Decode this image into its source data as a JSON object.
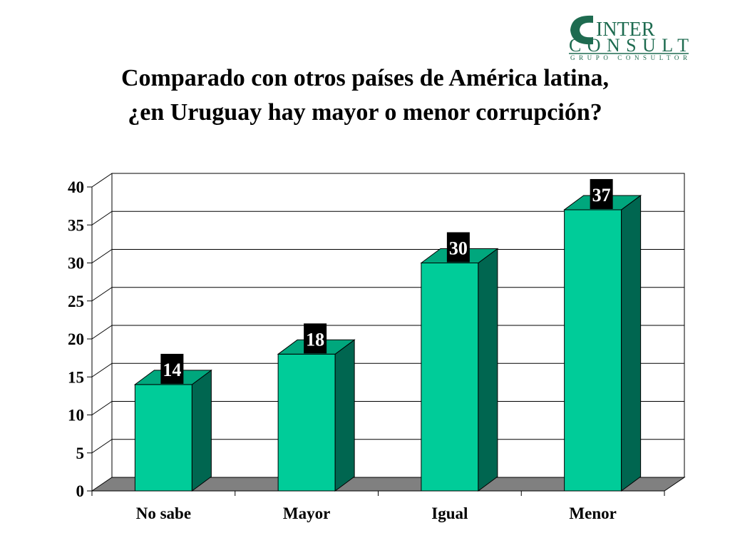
{
  "logo": {
    "line1": "INTER",
    "line2": "CONSULT",
    "line3": "GRUPO   CONSULTOR",
    "color": "#1e6b50"
  },
  "title": {
    "line1": "Comparado con otros países de América latina,",
    "line2": "¿en Uruguay hay mayor o menor corrupción?"
  },
  "chart_data": {
    "type": "bar",
    "style": "3d",
    "categories": [
      "No sabe",
      "Mayor",
      "Igual",
      "Menor"
    ],
    "values": [
      14,
      18,
      30,
      37
    ],
    "data_labels": [
      "14",
      "18",
      "30",
      "37"
    ],
    "ylim": [
      0,
      40
    ],
    "yticks": [
      0,
      5,
      10,
      15,
      20,
      25,
      30,
      35,
      40
    ],
    "grid": true,
    "legend": "none",
    "colors": {
      "bar_front": "#00cc99",
      "bar_side": "#006650",
      "bar_top": "#00a77d",
      "floor": "#808080",
      "label_box": "#000000"
    }
  }
}
